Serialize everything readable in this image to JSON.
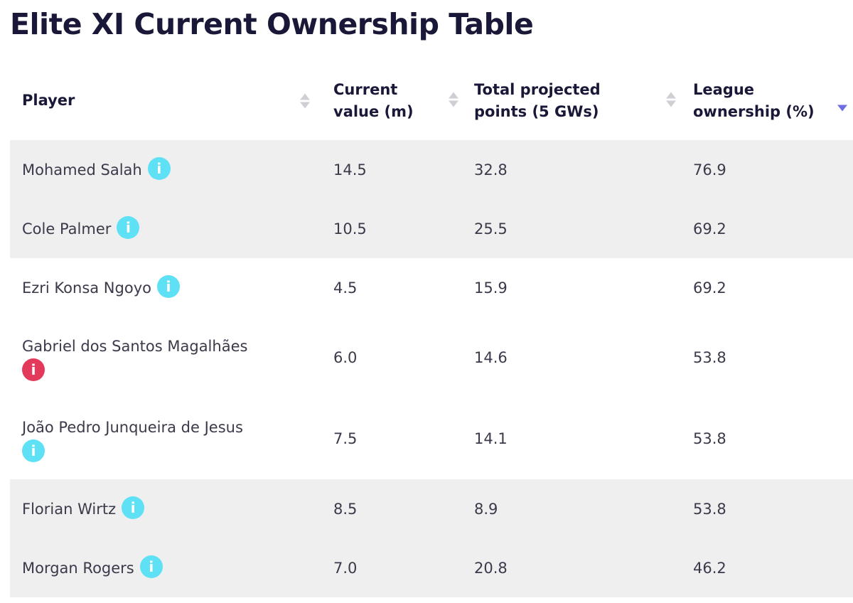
{
  "title": "Elite XI Current Ownership Table",
  "columns": [
    {
      "label": "Player"
    },
    {
      "label": "Current value (m)"
    },
    {
      "label": "Total projected points (5 GWs)"
    },
    {
      "label": "League ownership (%)"
    }
  ],
  "info_glyph": "i",
  "rows": [
    {
      "player": "Mohamed Salah",
      "value": "14.5",
      "points": "32.8",
      "ownership": "76.9",
      "status": "available"
    },
    {
      "player": "Cole Palmer",
      "value": "10.5",
      "points": "25.5",
      "ownership": "69.2",
      "status": "available"
    },
    {
      "player": "Ezri Konsa Ngoyo",
      "value": "4.5",
      "points": "15.9",
      "ownership": "69.2",
      "status": "available"
    },
    {
      "player": "Gabriel dos Santos Magalhães",
      "value": "6.0",
      "points": "14.6",
      "ownership": "53.8",
      "status": "alert"
    },
    {
      "player": "João Pedro Junqueira de Jesus",
      "value": "7.5",
      "points": "14.1",
      "ownership": "53.8",
      "status": "available"
    },
    {
      "player": "Florian Wirtz",
      "value": "8.5",
      "points": "8.9",
      "ownership": "53.8",
      "status": "available"
    },
    {
      "player": "Morgan Rogers",
      "value": "7.0",
      "points": "20.8",
      "ownership": "46.2",
      "status": "available"
    }
  ],
  "sort": {
    "column": "League ownership (%)",
    "direction": "descending"
  },
  "colors": {
    "title": "#1a1838",
    "info": "#5ee1f5",
    "alert": "#e33a5c",
    "row_shade": "#efeff0",
    "sort_active": "#6f6ee0"
  }
}
